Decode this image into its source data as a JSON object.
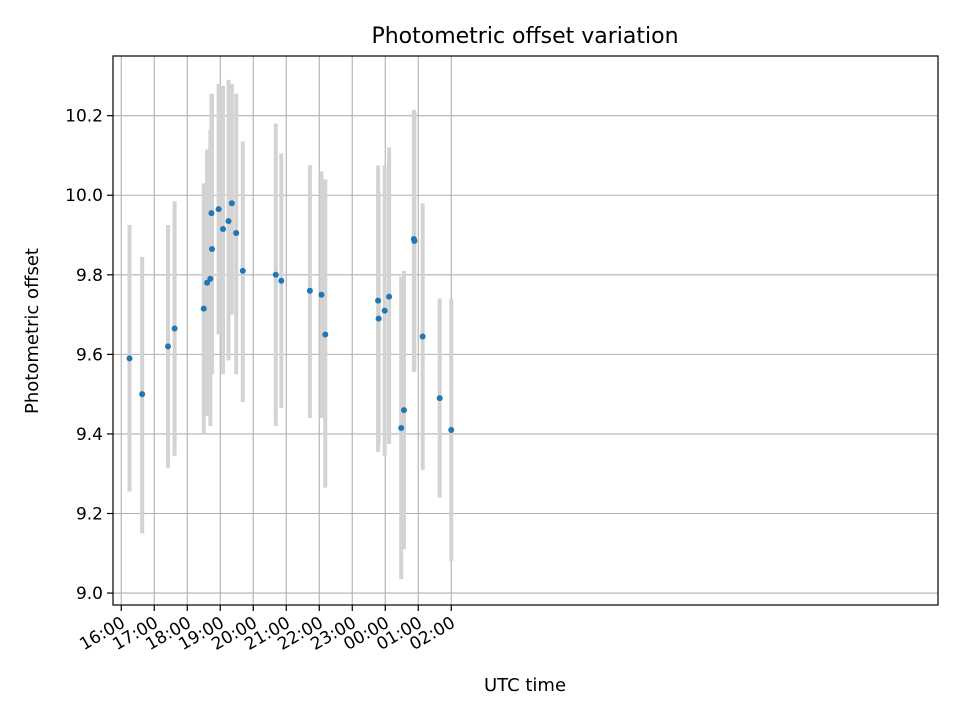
{
  "chart_data": {
    "type": "scatter",
    "title": "Photometric offset variation",
    "xlabel": "UTC time",
    "ylabel": "Photometric offset",
    "grid": true,
    "xlim_minutes": [
      -15,
      1485
    ],
    "ylim": [
      8.97,
      10.35
    ],
    "x_ticks": [
      "16:00",
      "17:00",
      "18:00",
      "19:00",
      "20:00",
      "21:00",
      "22:00",
      "23:00",
      "00:00",
      "01:00",
      "02:00"
    ],
    "y_ticks": [
      "9.0",
      "9.2",
      "9.4",
      "9.6",
      "9.8",
      "10.0",
      "10.2"
    ],
    "series": [
      {
        "marker_color": "#1f77b4",
        "errorbar_color": "#d3d3d3",
        "points": [
          {
            "t": "16:15",
            "y": 9.59,
            "lo": 9.255,
            "hi": 9.925
          },
          {
            "t": "16:38",
            "y": 9.5,
            "lo": 9.15,
            "hi": 9.845
          },
          {
            "t": "17:25",
            "y": 9.62,
            "lo": 9.315,
            "hi": 9.925
          },
          {
            "t": "17:37",
            "y": 9.665,
            "lo": 9.345,
            "hi": 9.985
          },
          {
            "t": "18:30",
            "y": 9.715,
            "lo": 9.4,
            "hi": 10.03
          },
          {
            "t": "18:36",
            "y": 9.78,
            "lo": 9.445,
            "hi": 10.115
          },
          {
            "t": "18:42",
            "y": 9.79,
            "lo": 9.42,
            "hi": 10.165
          },
          {
            "t": "18:44",
            "y": 9.955,
            "lo": 9.55,
            "hi": 10.255
          },
          {
            "t": "18:45",
            "y": 9.865,
            "lo": 9.55,
            "hi": 10.255
          },
          {
            "t": "18:57",
            "y": 9.965,
            "lo": 9.65,
            "hi": 10.28
          },
          {
            "t": "19:05",
            "y": 9.915,
            "lo": 9.55,
            "hi": 10.275
          },
          {
            "t": "19:15",
            "y": 9.935,
            "lo": 9.585,
            "hi": 10.29
          },
          {
            "t": "19:21",
            "y": 9.98,
            "lo": 9.7,
            "hi": 10.28
          },
          {
            "t": "19:29",
            "y": 9.905,
            "lo": 9.55,
            "hi": 10.255
          },
          {
            "t": "19:41",
            "y": 9.81,
            "lo": 9.48,
            "hi": 10.135
          },
          {
            "t": "20:41",
            "y": 9.8,
            "lo": 9.42,
            "hi": 10.18
          },
          {
            "t": "20:51",
            "y": 9.785,
            "lo": 9.465,
            "hi": 10.105
          },
          {
            "t": "21:43",
            "y": 9.76,
            "lo": 9.44,
            "hi": 10.075
          },
          {
            "t": "22:04",
            "y": 9.75,
            "lo": 9.44,
            "hi": 10.06
          },
          {
            "t": "22:11",
            "y": 9.65,
            "lo": 9.265,
            "hi": 10.04
          },
          {
            "t": "23:47",
            "y": 9.735,
            "lo": 9.355,
            "hi": 10.075
          },
          {
            "t": "23:48",
            "y": 9.69,
            "lo": 9.375,
            "hi": 10.01
          },
          {
            "t": "23:59",
            "y": 9.71,
            "lo": 9.345,
            "hi": 10.075
          },
          {
            "t": "00:07",
            "y": 9.745,
            "lo": 9.375,
            "hi": 10.12
          },
          {
            "t": "00:29",
            "y": 9.415,
            "lo": 9.035,
            "hi": 9.795
          },
          {
            "t": "00:34",
            "y": 9.46,
            "lo": 9.11,
            "hi": 9.81
          },
          {
            "t": "00:52",
            "y": 9.89,
            "lo": 9.555,
            "hi": 10.215
          },
          {
            "t": "00:53",
            "y": 9.885,
            "lo": 9.56,
            "hi": 10.21
          },
          {
            "t": "01:08",
            "y": 9.645,
            "lo": 9.31,
            "hi": 9.98
          },
          {
            "t": "01:39",
            "y": 9.49,
            "lo": 9.24,
            "hi": 9.74
          },
          {
            "t": "02:00",
            "y": 9.41,
            "lo": 9.08,
            "hi": 9.74
          }
        ]
      }
    ]
  }
}
